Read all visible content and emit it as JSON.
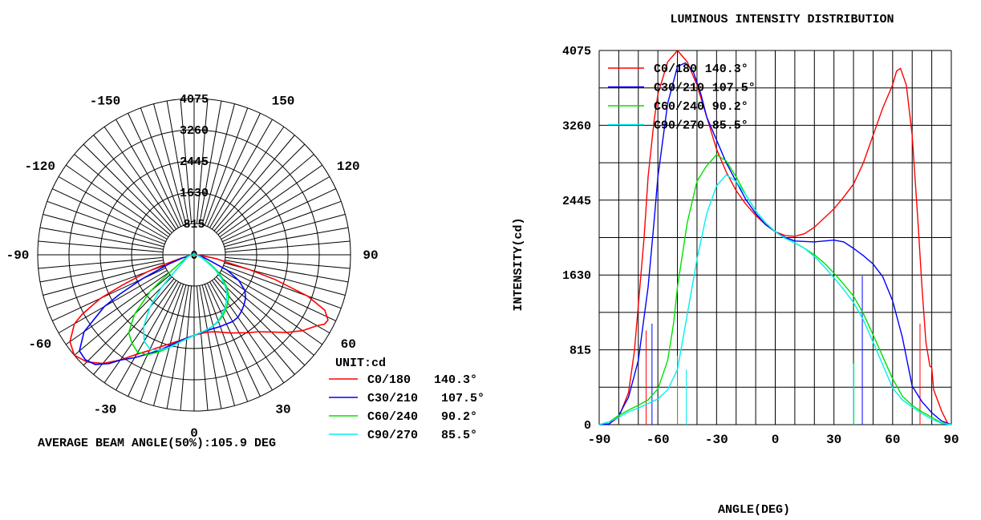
{
  "chart_data": [
    {
      "type": "polar",
      "title": "",
      "unit_label": "UNIT:cd",
      "footer": "AVERAGE BEAM ANGLE(50%):105.9 DEG",
      "radial_ticks": [
        "815",
        "1630",
        "2445",
        "3260",
        "4075"
      ],
      "radial_center_label": "0",
      "radial_max": 4075,
      "angle_labels": [
        {
          "angle": 0,
          "text": "0"
        },
        {
          "angle": 30,
          "text": "30"
        },
        {
          "angle": -30,
          "text": "-30"
        },
        {
          "angle": 60,
          "text": "60"
        },
        {
          "angle": -60,
          "text": "-60"
        },
        {
          "angle": 90,
          "text": "90"
        },
        {
          "angle": -90,
          "text": "-90"
        },
        {
          "angle": 120,
          "text": "120"
        },
        {
          "angle": -120,
          "text": "-120"
        },
        {
          "angle": 150,
          "text": "150"
        },
        {
          "angle": -150,
          "text": "-150"
        }
      ],
      "legend_placement": "bottom-right",
      "series_ref": "shared"
    },
    {
      "type": "line",
      "title": "LUMINOUS INTENSITY DISTRIBUTION",
      "xlabel": "ANGLE(DEG)",
      "ylabel": "INTENSITY(cd)",
      "xlim": [
        -90,
        90
      ],
      "ylim": [
        0,
        4075
      ],
      "xticks": [
        "-90",
        "-60",
        "-30",
        "0",
        "30",
        "60",
        "90"
      ],
      "yticks": [
        "0",
        "815",
        "1630",
        "2445",
        "3260",
        "4075"
      ],
      "grid": true,
      "legend_placement": "top-left",
      "series_ref": "shared"
    }
  ],
  "series": [
    {
      "name": "C0/180",
      "beam": "140.3°",
      "color": "#ff0000",
      "beam_markers": [
        -66,
        74
      ],
      "points": [
        [
          -90,
          0
        ],
        [
          -85,
          10
        ],
        [
          -80,
          80
        ],
        [
          -75,
          350
        ],
        [
          -72,
          800
        ],
        [
          -70,
          1300
        ],
        [
          -67,
          2050
        ],
        [
          -65,
          2700
        ],
        [
          -62,
          3300
        ],
        [
          -60,
          3600
        ],
        [
          -55,
          3950
        ],
        [
          -50,
          4075
        ],
        [
          -45,
          3950
        ],
        [
          -40,
          3700
        ],
        [
          -35,
          3350
        ],
        [
          -30,
          3000
        ],
        [
          -25,
          2750
        ],
        [
          -20,
          2550
        ],
        [
          -15,
          2400
        ],
        [
          -10,
          2280
        ],
        [
          -5,
          2180
        ],
        [
          0,
          2100
        ],
        [
          5,
          2060
        ],
        [
          10,
          2050
        ],
        [
          15,
          2080
        ],
        [
          20,
          2150
        ],
        [
          25,
          2250
        ],
        [
          30,
          2350
        ],
        [
          35,
          2480
        ],
        [
          40,
          2620
        ],
        [
          45,
          2850
        ],
        [
          50,
          3150
        ],
        [
          55,
          3450
        ],
        [
          60,
          3700
        ],
        [
          62,
          3850
        ],
        [
          64,
          3880
        ],
        [
          67,
          3700
        ],
        [
          70,
          3150
        ],
        [
          73,
          2200
        ],
        [
          75,
          1500
        ],
        [
          77,
          900
        ],
        [
          79,
          640
        ],
        [
          80,
          620
        ],
        [
          81,
          380
        ],
        [
          85,
          150
        ],
        [
          88,
          20
        ],
        [
          90,
          0
        ]
      ]
    },
    {
      "name": "C30/210",
      "beam": "107.5°",
      "color": "#0000ff",
      "beam_markers": [
        -63,
        44.5
      ],
      "points": [
        [
          -90,
          0
        ],
        [
          -85,
          5
        ],
        [
          -80,
          100
        ],
        [
          -75,
          300
        ],
        [
          -70,
          700
        ],
        [
          -65,
          1500
        ],
        [
          -62,
          2200
        ],
        [
          -60,
          2700
        ],
        [
          -55,
          3500
        ],
        [
          -50,
          3900
        ],
        [
          -46,
          3940
        ],
        [
          -42,
          3850
        ],
        [
          -38,
          3600
        ],
        [
          -35,
          3350
        ],
        [
          -30,
          3100
        ],
        [
          -25,
          2850
        ],
        [
          -20,
          2650
        ],
        [
          -15,
          2450
        ],
        [
          -10,
          2300
        ],
        [
          -5,
          2180
        ],
        [
          0,
          2100
        ],
        [
          5,
          2040
        ],
        [
          10,
          2000
        ],
        [
          20,
          1990
        ],
        [
          30,
          2010
        ],
        [
          35,
          1990
        ],
        [
          40,
          1920
        ],
        [
          45,
          1840
        ],
        [
          50,
          1750
        ],
        [
          55,
          1610
        ],
        [
          60,
          1350
        ],
        [
          65,
          950
        ],
        [
          70,
          420
        ],
        [
          75,
          250
        ],
        [
          80,
          130
        ],
        [
          85,
          40
        ],
        [
          90,
          0
        ]
      ]
    },
    {
      "name": "C60/240",
      "beam": "90.2°",
      "color": "#00e000",
      "beam_markers": [
        -50,
        40.2
      ],
      "points": [
        [
          -90,
          0
        ],
        [
          -85,
          30
        ],
        [
          -80,
          100
        ],
        [
          -75,
          160
        ],
        [
          -70,
          210
        ],
        [
          -65,
          270
        ],
        [
          -60,
          390
        ],
        [
          -55,
          700
        ],
        [
          -52,
          1100
        ],
        [
          -50,
          1500
        ],
        [
          -45,
          2200
        ],
        [
          -40,
          2650
        ],
        [
          -35,
          2820
        ],
        [
          -30,
          2940
        ],
        [
          -25,
          2870
        ],
        [
          -20,
          2700
        ],
        [
          -15,
          2500
        ],
        [
          -10,
          2330
        ],
        [
          -5,
          2200
        ],
        [
          0,
          2100
        ],
        [
          5,
          2030
        ],
        [
          10,
          1980
        ],
        [
          15,
          1920
        ],
        [
          20,
          1850
        ],
        [
          25,
          1760
        ],
        [
          30,
          1650
        ],
        [
          35,
          1530
        ],
        [
          40,
          1400
        ],
        [
          45,
          1210
        ],
        [
          50,
          980
        ],
        [
          55,
          740
        ],
        [
          60,
          500
        ],
        [
          65,
          310
        ],
        [
          70,
          210
        ],
        [
          75,
          140
        ],
        [
          80,
          80
        ],
        [
          85,
          20
        ],
        [
          90,
          0
        ]
      ]
    },
    {
      "name": "C90/270",
      "beam": "85.5°",
      "color": "#00f0f0",
      "beam_markers": [
        -45.5,
        40
      ],
      "points": [
        [
          -90,
          0
        ],
        [
          -85,
          30
        ],
        [
          -80,
          80
        ],
        [
          -75,
          140
        ],
        [
          -70,
          180
        ],
        [
          -65,
          230
        ],
        [
          -60,
          280
        ],
        [
          -55,
          380
        ],
        [
          -50,
          600
        ],
        [
          -45,
          1200
        ],
        [
          -40,
          1800
        ],
        [
          -35,
          2300
        ],
        [
          -30,
          2600
        ],
        [
          -25,
          2720
        ],
        [
          -20,
          2650
        ],
        [
          -15,
          2500
        ],
        [
          -10,
          2330
        ],
        [
          -5,
          2200
        ],
        [
          0,
          2100
        ],
        [
          5,
          2030
        ],
        [
          10,
          1980
        ],
        [
          15,
          1920
        ],
        [
          20,
          1830
        ],
        [
          25,
          1720
        ],
        [
          30,
          1600
        ],
        [
          35,
          1470
        ],
        [
          40,
          1330
        ],
        [
          45,
          1140
        ],
        [
          50,
          900
        ],
        [
          55,
          650
        ],
        [
          60,
          400
        ],
        [
          65,
          270
        ],
        [
          70,
          190
        ],
        [
          75,
          120
        ],
        [
          80,
          60
        ],
        [
          85,
          15
        ],
        [
          90,
          0
        ]
      ]
    }
  ]
}
